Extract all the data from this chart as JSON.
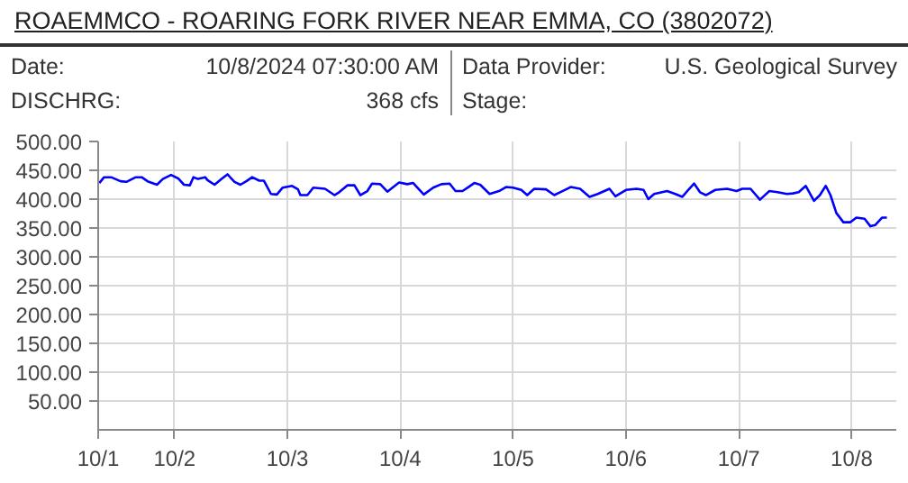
{
  "chart_data": {
    "type": "line",
    "title": "ROAEMMCO - ROARING FORK RIVER NEAR EMMA, CO (3802072)",
    "annotations": [
      "Date:",
      "10/8/2024 07:30:00 AM",
      "Data Provider:",
      "U.S. Geological Survey",
      "DISCHRG:",
      "368 cfs",
      "Stage:"
    ],
    "xlim": [
      "2024-10-01T07:45",
      "2024-10-08T09:30"
    ],
    "xticks": [
      {
        "value": "2024-10-01T07:45",
        "label": "10/1"
      },
      {
        "value": "2024-10-02",
        "label": "10/2"
      },
      {
        "value": "2024-10-03",
        "label": "10/3"
      },
      {
        "value": "2024-10-04",
        "label": "10/4"
      },
      {
        "value": "2024-10-05",
        "label": "10/5"
      },
      {
        "value": "2024-10-06",
        "label": "10/6"
      },
      {
        "value": "2024-10-07",
        "label": "10/7"
      },
      {
        "value": "2024-10-08",
        "label": "10/8"
      }
    ],
    "ylim": [
      0,
      500
    ],
    "yticks": [
      {
        "value": 50,
        "label": "50.00"
      },
      {
        "value": 100,
        "label": "100.00"
      },
      {
        "value": 150,
        "label": "150.00"
      },
      {
        "value": 200,
        "label": "200.00"
      },
      {
        "value": 250,
        "label": "250.00"
      },
      {
        "value": 300,
        "label": "300.00"
      },
      {
        "value": 350,
        "label": "350.00"
      },
      {
        "value": 400,
        "label": "400.00"
      },
      {
        "value": 450,
        "label": "450.00"
      },
      {
        "value": 500,
        "label": "500.00"
      }
    ],
    "grid": true,
    "marker": "none",
    "line_style": "solid",
    "x": [
      "2024-10-01T08:00",
      "2024-10-01T09:00",
      "2024-10-01T10:30",
      "2024-10-01T12:30",
      "2024-10-01T13:45",
      "2024-10-01T15:45",
      "2024-10-01T17:00",
      "2024-10-01T18:15",
      "2024-10-01T20:15",
      "2024-10-01T21:30",
      "2024-10-01T23:15",
      "2024-10-02T00:45",
      "2024-10-02T02:00",
      "2024-10-02T03:15",
      "2024-10-02T04:00",
      "2024-10-02T05:00",
      "2024-10-02T06:30",
      "2024-10-02T07:00",
      "2024-10-02T08:30",
      "2024-10-02T10:00",
      "2024-10-02T11:15",
      "2024-10-02T12:45",
      "2024-10-02T14:00",
      "2024-10-02T15:15",
      "2024-10-02T16:30",
      "2024-10-02T18:00",
      "2024-10-02T19:00",
      "2024-10-02T20:30",
      "2024-10-02T21:45",
      "2024-10-02T23:00",
      "2024-10-03T01:00",
      "2024-10-03T02:15",
      "2024-10-03T02:45",
      "2024-10-03T04:15",
      "2024-10-03T05:30",
      "2024-10-03T08:00",
      "2024-10-03T10:00",
      "2024-10-03T11:00",
      "2024-10-03T12:45",
      "2024-10-03T14:15",
      "2024-10-03T15:30",
      "2024-10-03T17:00",
      "2024-10-03T18:00",
      "2024-10-03T19:45",
      "2024-10-03T21:15",
      "2024-10-03T23:45",
      "2024-10-04T01:30",
      "2024-10-04T02:45",
      "2024-10-04T05:00",
      "2024-10-04T07:00",
      "2024-10-04T08:45",
      "2024-10-04T10:30",
      "2024-10-04T11:45",
      "2024-10-04T13:15",
      "2024-10-04T14:30",
      "2024-10-04T15:45",
      "2024-10-04T17:00",
      "2024-10-04T19:00",
      "2024-10-04T21:00",
      "2024-10-04T22:30",
      "2024-10-05T00:00",
      "2024-10-05T01:45",
      "2024-10-05T03:00",
      "2024-10-05T04:30",
      "2024-10-05T07:00",
      "2024-10-05T08:45",
      "2024-10-05T10:00",
      "2024-10-05T12:15",
      "2024-10-05T14:15",
      "2024-10-05T16:15",
      "2024-10-05T18:00",
      "2024-10-05T20:30",
      "2024-10-05T21:45",
      "2024-10-06T00:00",
      "2024-10-06T02:15",
      "2024-10-06T03:45",
      "2024-10-06T04:45",
      "2024-10-06T06:00",
      "2024-10-06T08:45",
      "2024-10-06T10:30",
      "2024-10-06T12:00",
      "2024-10-06T13:15",
      "2024-10-06T14:30",
      "2024-10-06T15:45",
      "2024-10-06T17:00",
      "2024-10-06T19:00",
      "2024-10-06T21:30",
      "2024-10-06T23:30",
      "2024-10-07T00:45",
      "2024-10-07T02:30",
      "2024-10-07T04:30",
      "2024-10-07T06:30",
      "2024-10-07T08:15",
      "2024-10-07T10:15",
      "2024-10-07T11:30",
      "2024-10-07T12:45",
      "2024-10-07T14:15",
      "2024-10-07T16:00",
      "2024-10-07T17:15",
      "2024-10-07T18:30",
      "2024-10-07T19:30",
      "2024-10-07T20:45",
      "2024-10-07T22:15",
      "2024-10-07T23:45",
      "2024-10-08T01:00",
      "2024-10-08T02:45",
      "2024-10-08T04:00",
      "2024-10-08T05:00",
      "2024-10-08T06:30",
      "2024-10-08T07:30"
    ],
    "series": [
      {
        "color": "#0000ff",
        "values": [
          428,
          438,
          438,
          431,
          430,
          438,
          438,
          431,
          425,
          435,
          442,
          436,
          425,
          424,
          438,
          435,
          438,
          433,
          425,
          435,
          443,
          430,
          425,
          431,
          438,
          432,
          432,
          409,
          408,
          420,
          423,
          417,
          407,
          407,
          420,
          418,
          407,
          412,
          424,
          424,
          407,
          414,
          427,
          426,
          413,
          429,
          426,
          428,
          408,
          420,
          426,
          427,
          414,
          414,
          421,
          428,
          425,
          409,
          414,
          421,
          420,
          416,
          407,
          418,
          417,
          407,
          412,
          421,
          418,
          404,
          409,
          418,
          405,
          416,
          418,
          416,
          400,
          409,
          414,
          409,
          404,
          416,
          427,
          412,
          407,
          416,
          418,
          414,
          418,
          418,
          399,
          414,
          412,
          409,
          410,
          412,
          423,
          397,
          407,
          423,
          407,
          376,
          360,
          360,
          368,
          366,
          353,
          355,
          368,
          368
        ]
      }
    ]
  }
}
